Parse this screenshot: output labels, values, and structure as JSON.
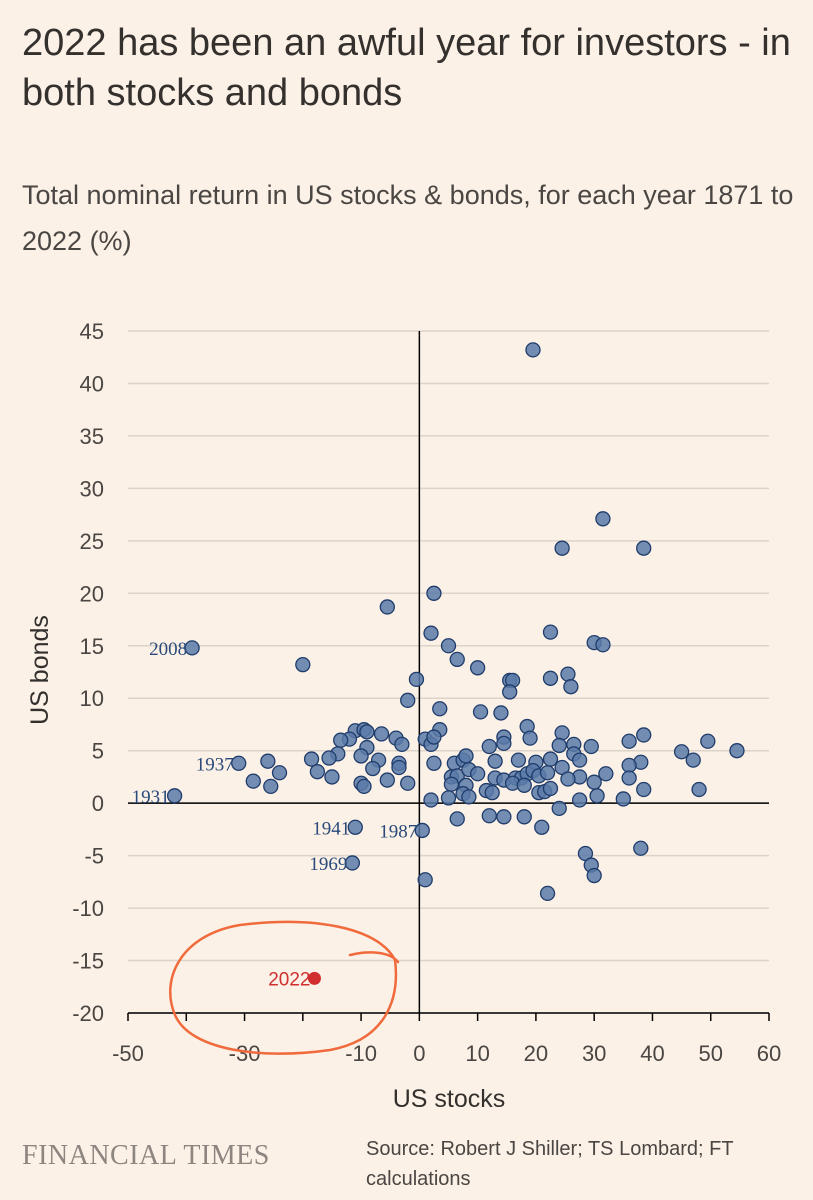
{
  "header": {
    "title": "2022 has been an awful year for investors - in both stocks and bonds",
    "subtitle": "Total nominal return in US stocks & bonds, for each year 1871 to 2022 (%)"
  },
  "footer": {
    "logo": "FINANCIAL TIMES",
    "source": "Source: Robert J Shiller; TS Lombard; FT calculations"
  },
  "colors": {
    "background": "#fbf1e6",
    "point_fill": "#5a7aa8",
    "point_stroke": "#1f3c6b",
    "highlight": "#d12f2f",
    "gridline": "#dcd3ca",
    "circle_marker": "#f06a3c"
  },
  "chart_data": {
    "type": "scatter",
    "xlabel": "US stocks",
    "ylabel": "US bonds",
    "xlim": [
      -50,
      60
    ],
    "ylim": [
      -20,
      45
    ],
    "x_ticks": [
      -50,
      -40,
      -30,
      -20,
      -10,
      0,
      10,
      20,
      30,
      40,
      50,
      60
    ],
    "x_tick_labels": [
      "-50",
      "",
      "-30",
      "",
      "-10",
      "0",
      "10",
      "20",
      "30",
      "40",
      "50",
      "60"
    ],
    "y_ticks": [
      -20,
      -15,
      -10,
      -5,
      0,
      5,
      10,
      15,
      20,
      25,
      30,
      35,
      40,
      45
    ],
    "grid": "horizontal",
    "labeled_points": [
      {
        "label": "2008",
        "x": -39,
        "y": 14.8
      },
      {
        "label": "1937",
        "x": -31,
        "y": 3.8
      },
      {
        "label": "1931",
        "x": -42,
        "y": 0.7
      },
      {
        "label": "1941",
        "x": -11,
        "y": -2.3
      },
      {
        "label": "1987",
        "x": 0.5,
        "y": -2.6
      },
      {
        "label": "1969",
        "x": -11.5,
        "y": -5.7
      },
      {
        "label": "2022",
        "x": -18,
        "y": -16.7,
        "highlight": true
      }
    ],
    "points": [
      [
        19.5,
        43.2
      ],
      [
        31.5,
        27.1
      ],
      [
        24.5,
        24.3
      ],
      [
        38.5,
        24.3
      ],
      [
        2.5,
        20.0
      ],
      [
        -5.5,
        18.7
      ],
      [
        2,
        16.2
      ],
      [
        22.5,
        16.3
      ],
      [
        5,
        15.0
      ],
      [
        30,
        15.3
      ],
      [
        31.5,
        15.1
      ],
      [
        6.5,
        13.7
      ],
      [
        -20,
        13.2
      ],
      [
        10,
        12.9
      ],
      [
        15.5,
        11.7
      ],
      [
        -0.5,
        11.8
      ],
      [
        22.5,
        11.9
      ],
      [
        25.5,
        12.3
      ],
      [
        16,
        11.7
      ],
      [
        15.5,
        10.6
      ],
      [
        26,
        11.1
      ],
      [
        -2,
        9.8
      ],
      [
        3.5,
        9.0
      ],
      [
        10.5,
        8.7
      ],
      [
        14,
        8.6
      ],
      [
        -11,
        6.9
      ],
      [
        -9.5,
        7.0
      ],
      [
        -9,
        6.8
      ],
      [
        -6.5,
        6.6
      ],
      [
        3.5,
        7.0
      ],
      [
        18.5,
        7.3
      ],
      [
        24.5,
        6.7
      ],
      [
        -12,
        6.1
      ],
      [
        -13.5,
        6.0
      ],
      [
        -4,
        6.2
      ],
      [
        1,
        6.1
      ],
      [
        -3,
        5.6
      ],
      [
        2,
        5.6
      ],
      [
        2.5,
        6.3
      ],
      [
        14.5,
        6.3
      ],
      [
        19,
        6.2
      ],
      [
        -9,
        5.3
      ],
      [
        12,
        5.4
      ],
      [
        14.5,
        5.7
      ],
      [
        24,
        5.5
      ],
      [
        26.5,
        5.6
      ],
      [
        29.5,
        5.4
      ],
      [
        36,
        5.9
      ],
      [
        38.5,
        6.5
      ],
      [
        49.5,
        5.9
      ],
      [
        45,
        4.9
      ],
      [
        54.5,
        5.0
      ],
      [
        -14,
        4.7
      ],
      [
        -10,
        4.5
      ],
      [
        -7,
        4.1
      ],
      [
        -15.5,
        4.3
      ],
      [
        -26,
        4.0
      ],
      [
        -18.5,
        4.2
      ],
      [
        -3.5,
        3.8
      ],
      [
        6,
        3.8
      ],
      [
        7.5,
        4.1
      ],
      [
        8,
        4.5
      ],
      [
        13,
        4.0
      ],
      [
        17,
        4.1
      ],
      [
        20,
        3.9
      ],
      [
        22.5,
        4.2
      ],
      [
        26.5,
        4.7
      ],
      [
        27.5,
        4.1
      ],
      [
        38,
        3.9
      ],
      [
        47,
        4.1
      ],
      [
        -24,
        2.9
      ],
      [
        -17.5,
        3.0
      ],
      [
        -8,
        3.3
      ],
      [
        -3.5,
        3.4
      ],
      [
        -25.5,
        1.6
      ],
      [
        -28.5,
        2.1
      ],
      [
        -15,
        2.5
      ],
      [
        -5.5,
        2.2
      ],
      [
        -2,
        1.9
      ],
      [
        -10,
        1.9
      ],
      [
        -9.5,
        1.6
      ],
      [
        2.5,
        3.8
      ],
      [
        5.5,
        2.5
      ],
      [
        6.5,
        2.6
      ],
      [
        8.5,
        3.2
      ],
      [
        10,
        2.8
      ],
      [
        13,
        2.4
      ],
      [
        14.5,
        2.2
      ],
      [
        16.5,
        2.4
      ],
      [
        17.5,
        2.4
      ],
      [
        18.5,
        2.8
      ],
      [
        19.5,
        3.1
      ],
      [
        20.5,
        2.6
      ],
      [
        22,
        2.9
      ],
      [
        24.5,
        3.4
      ],
      [
        27.5,
        2.5
      ],
      [
        30,
        2.0
      ],
      [
        32,
        2.8
      ],
      [
        36,
        3.6
      ],
      [
        36,
        2.4
      ],
      [
        5.5,
        1.8
      ],
      [
        8,
        1.7
      ],
      [
        7.5,
        0.9
      ],
      [
        11.5,
        1.2
      ],
      [
        12.5,
        1.0
      ],
      [
        16,
        1.9
      ],
      [
        18,
        1.7
      ],
      [
        20.5,
        1.0
      ],
      [
        21.5,
        1.1
      ],
      [
        22.5,
        1.4
      ],
      [
        25.5,
        2.3
      ],
      [
        30.5,
        0.7
      ],
      [
        35,
        0.4
      ],
      [
        38.5,
        1.3
      ],
      [
        48,
        1.3
      ],
      [
        2,
        0.3
      ],
      [
        5,
        0.5
      ],
      [
        8.5,
        0.6
      ],
      [
        27.5,
        0.3
      ],
      [
        24,
        -0.5
      ],
      [
        12,
        -1.2
      ],
      [
        14.5,
        -1.3
      ],
      [
        18,
        -1.3
      ],
      [
        6.5,
        -1.5
      ],
      [
        21,
        -2.3
      ],
      [
        28.5,
        -4.8
      ],
      [
        38,
        -4.3
      ],
      [
        29.5,
        -5.9
      ],
      [
        30,
        -6.9
      ],
      [
        1,
        -7.3
      ],
      [
        22,
        -8.6
      ]
    ]
  }
}
